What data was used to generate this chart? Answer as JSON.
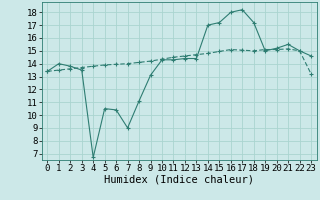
{
  "xlabel": "Humidex (Indice chaleur)",
  "background_color": "#cce8e8",
  "line_color": "#2e7d72",
  "grid_color": "#aad4d0",
  "xlim": [
    -0.5,
    23.5
  ],
  "ylim": [
    6.5,
    18.8
  ],
  "yticks": [
    7,
    8,
    9,
    10,
    11,
    12,
    13,
    14,
    15,
    16,
    17,
    18
  ],
  "xticks": [
    0,
    1,
    2,
    3,
    4,
    5,
    6,
    7,
    8,
    9,
    10,
    11,
    12,
    13,
    14,
    15,
    16,
    17,
    18,
    19,
    20,
    21,
    22,
    23
  ],
  "line1_x": [
    0,
    1,
    2,
    3,
    4,
    5,
    6,
    7,
    8,
    9,
    10,
    11,
    12,
    13,
    14,
    15,
    16,
    17,
    18,
    19,
    20,
    21,
    22,
    23
  ],
  "line1_y": [
    13.4,
    14.0,
    13.8,
    13.5,
    6.7,
    10.5,
    10.4,
    9.0,
    11.1,
    13.1,
    14.3,
    14.3,
    14.4,
    14.4,
    17.0,
    17.2,
    18.0,
    18.2,
    17.2,
    15.0,
    15.2,
    15.5,
    15.0,
    14.6
  ],
  "line2_x": [
    0,
    1,
    2,
    3,
    4,
    5,
    6,
    7,
    8,
    9,
    10,
    11,
    12,
    13,
    14,
    15,
    16,
    17,
    18,
    19,
    20,
    21,
    22,
    23
  ],
  "line2_y": [
    13.4,
    13.5,
    13.6,
    13.7,
    13.8,
    13.9,
    13.95,
    14.0,
    14.1,
    14.2,
    14.35,
    14.5,
    14.6,
    14.7,
    14.8,
    14.95,
    15.1,
    15.05,
    15.0,
    15.1,
    15.1,
    15.15,
    15.0,
    13.2
  ],
  "tick_fontsize": 6.5,
  "label_fontsize": 7.5
}
